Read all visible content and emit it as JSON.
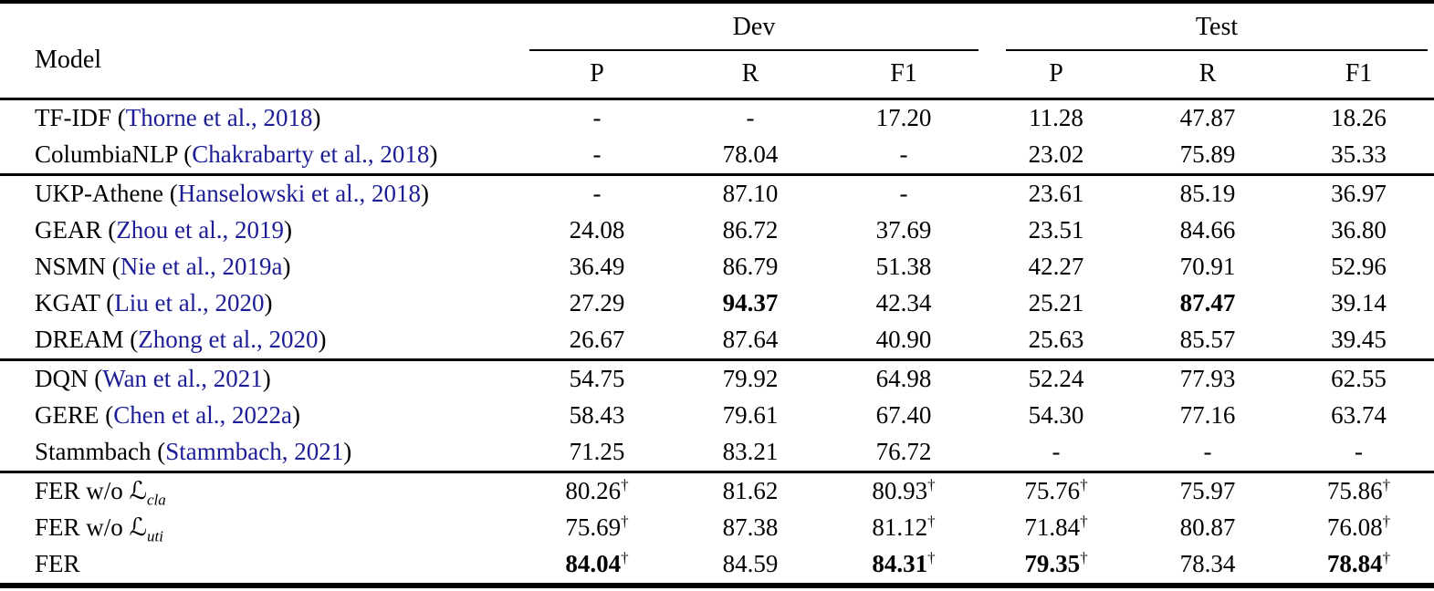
{
  "table": {
    "title_col": "Model",
    "spanners": [
      {
        "label": "Dev",
        "cols": [
          "P",
          "R",
          "F1"
        ]
      },
      {
        "label": "Test",
        "cols": [
          "P",
          "R",
          "F1"
        ]
      }
    ],
    "symbols": {
      "dagger": "†",
      "loss": "ℒ",
      "dash": "-"
    },
    "colors": {
      "citation": "#1d1d96",
      "text": "#000000"
    },
    "groups": [
      {
        "rows": [
          {
            "model": "TF-IDF",
            "citation": "Thorne et al., 2018",
            "values": [
              {
                "v": "-"
              },
              {
                "v": "-"
              },
              {
                "v": "17.20"
              },
              {
                "v": "11.28"
              },
              {
                "v": "47.87"
              },
              {
                "v": "18.26"
              }
            ]
          },
          {
            "model": "ColumbiaNLP",
            "citation": "Chakrabarty et al., 2018",
            "values": [
              {
                "v": "-"
              },
              {
                "v": "78.04"
              },
              {
                "v": "-"
              },
              {
                "v": "23.02"
              },
              {
                "v": "75.89"
              },
              {
                "v": "35.33"
              }
            ]
          }
        ]
      },
      {
        "rows": [
          {
            "model": "UKP-Athene",
            "citation": "Hanselowski et al., 2018",
            "values": [
              {
                "v": "-"
              },
              {
                "v": "87.10"
              },
              {
                "v": "-"
              },
              {
                "v": "23.61"
              },
              {
                "v": "85.19"
              },
              {
                "v": "36.97"
              }
            ]
          },
          {
            "model": "GEAR",
            "citation": "Zhou et al., 2019",
            "values": [
              {
                "v": "24.08"
              },
              {
                "v": "86.72"
              },
              {
                "v": "37.69"
              },
              {
                "v": "23.51"
              },
              {
                "v": "84.66"
              },
              {
                "v": "36.80"
              }
            ]
          },
          {
            "model": "NSMN",
            "citation": "Nie et al., 2019a",
            "values": [
              {
                "v": "36.49"
              },
              {
                "v": "86.79"
              },
              {
                "v": "51.38"
              },
              {
                "v": "42.27"
              },
              {
                "v": "70.91"
              },
              {
                "v": "52.96"
              }
            ]
          },
          {
            "model": "KGAT",
            "citation": "Liu et al., 2020",
            "values": [
              {
                "v": "27.29"
              },
              {
                "v": "94.37",
                "bold": true
              },
              {
                "v": "42.34"
              },
              {
                "v": "25.21"
              },
              {
                "v": "87.47",
                "bold": true
              },
              {
                "v": "39.14"
              }
            ]
          },
          {
            "model": "DREAM",
            "citation": "Zhong et al., 2020",
            "values": [
              {
                "v": "26.67"
              },
              {
                "v": "87.64"
              },
              {
                "v": "40.90"
              },
              {
                "v": "25.63"
              },
              {
                "v": "85.57"
              },
              {
                "v": "39.45"
              }
            ]
          }
        ]
      },
      {
        "rows": [
          {
            "model": "DQN",
            "citation": "Wan et al., 2021",
            "values": [
              {
                "v": "54.75"
              },
              {
                "v": "79.92"
              },
              {
                "v": "64.98"
              },
              {
                "v": "52.24"
              },
              {
                "v": "77.93"
              },
              {
                "v": "62.55"
              }
            ]
          },
          {
            "model": "GERE",
            "citation": "Chen et al., 2022a",
            "values": [
              {
                "v": "58.43"
              },
              {
                "v": "79.61"
              },
              {
                "v": "67.40"
              },
              {
                "v": "54.30"
              },
              {
                "v": "77.16"
              },
              {
                "v": "63.74"
              }
            ]
          },
          {
            "model": "Stammbach",
            "citation": "Stammbach, 2021",
            "values": [
              {
                "v": "71.25"
              },
              {
                "v": "83.21"
              },
              {
                "v": "76.72"
              },
              {
                "v": "-"
              },
              {
                "v": "-"
              },
              {
                "v": "-"
              }
            ]
          }
        ]
      },
      {
        "rows": [
          {
            "model": "FER w/o",
            "math_loss_sub": "cla",
            "values": [
              {
                "v": "80.26",
                "dagger": true
              },
              {
                "v": "81.62"
              },
              {
                "v": "80.93",
                "dagger": true
              },
              {
                "v": "75.76",
                "dagger": true
              },
              {
                "v": "75.97"
              },
              {
                "v": "75.86",
                "dagger": true
              }
            ]
          },
          {
            "model": "FER w/o",
            "math_loss_sub": "uti",
            "values": [
              {
                "v": "75.69",
                "dagger": true
              },
              {
                "v": "87.38"
              },
              {
                "v": "81.12",
                "dagger": true
              },
              {
                "v": "71.84",
                "dagger": true
              },
              {
                "v": "80.87"
              },
              {
                "v": "76.08",
                "dagger": true
              }
            ]
          },
          {
            "model": "FER",
            "values": [
              {
                "v": "84.04",
                "bold": true,
                "dagger": true
              },
              {
                "v": "84.59"
              },
              {
                "v": "84.31",
                "bold": true,
                "dagger": true
              },
              {
                "v": "79.35",
                "bold": true,
                "dagger": true
              },
              {
                "v": "78.34"
              },
              {
                "v": "78.84",
                "bold": true,
                "dagger": true
              }
            ]
          }
        ]
      }
    ]
  }
}
